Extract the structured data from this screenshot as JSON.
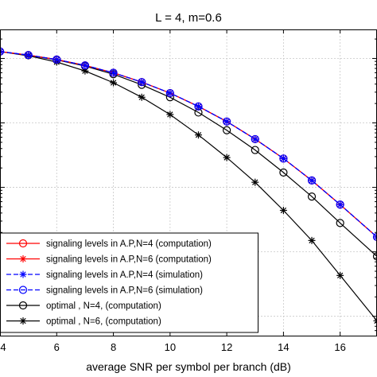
{
  "chart_data": {
    "type": "line",
    "title": "L = 4,  m=0.6",
    "xlabel": "average SNR per symbol per branch (dB)",
    "ylabel": "",
    "xlim": [
      4,
      17.3
    ],
    "ylim_log10": [
      -4.3,
      0.45
    ],
    "y_scale": "log",
    "x_ticks": [
      4,
      6,
      8,
      10,
      12,
      14,
      16
    ],
    "grid": true,
    "legend_position": "bottom-left",
    "series": [
      {
        "name": "signaling levels in A.P,N=4 (computation)",
        "color": "#ff0000",
        "marker": "circle",
        "dash": "solid",
        "x": [
          4,
          5,
          6,
          7,
          8,
          9,
          10,
          11,
          12,
          13,
          14,
          15,
          16,
          17.3
        ],
        "y": [
          1.28,
          1.13,
          0.96,
          0.78,
          0.6,
          0.43,
          0.29,
          0.18,
          0.105,
          0.056,
          0.028,
          0.0128,
          0.0054,
          0.0017
        ]
      },
      {
        "name": "signaling levels in A.P,N=6 (computation)",
        "color": "#ff0000",
        "marker": "star",
        "dash": "solid",
        "x": [
          4,
          5,
          6,
          7,
          8,
          9,
          10,
          11,
          12,
          13,
          14,
          15,
          16,
          17.3
        ],
        "y": [
          1.28,
          1.13,
          0.96,
          0.78,
          0.6,
          0.43,
          0.29,
          0.18,
          0.105,
          0.056,
          0.028,
          0.0128,
          0.0054,
          0.0017
        ]
      },
      {
        "name": "signaling levels in A.P,N=4 (simulation)",
        "color": "#0000ff",
        "marker": "star",
        "dash": "dashed",
        "x": [
          4,
          5,
          6,
          7,
          8,
          9,
          10,
          11,
          12,
          13,
          14,
          15,
          16,
          17.3
        ],
        "y": [
          1.28,
          1.13,
          0.96,
          0.78,
          0.6,
          0.43,
          0.29,
          0.18,
          0.105,
          0.056,
          0.028,
          0.0128,
          0.0054,
          0.0017
        ]
      },
      {
        "name": "signaling levels in A.P,N=6 (simulation)",
        "color": "#0000ff",
        "marker": "circle",
        "dash": "dashed",
        "x": [
          4,
          5,
          6,
          7,
          8,
          9,
          10,
          11,
          12,
          13,
          14,
          15,
          16,
          17.3
        ],
        "y": [
          1.28,
          1.13,
          0.96,
          0.78,
          0.6,
          0.43,
          0.29,
          0.18,
          0.105,
          0.056,
          0.028,
          0.0128,
          0.0054,
          0.0017
        ]
      },
      {
        "name": "optimal , N=4, (computation)",
        "color": "#000000",
        "marker": "circle",
        "dash": "solid",
        "x": [
          4,
          5,
          6,
          7,
          8,
          9,
          10,
          11,
          12,
          13,
          14,
          15,
          16,
          17.3
        ],
        "y": [
          1.28,
          1.12,
          0.95,
          0.76,
          0.57,
          0.39,
          0.25,
          0.145,
          0.077,
          0.038,
          0.017,
          0.0072,
          0.0028,
          0.00085
        ]
      },
      {
        "name": "optimal , N=6, (computation)",
        "color": "#000000",
        "marker": "star",
        "dash": "solid",
        "x": [
          4,
          5,
          6,
          7,
          8,
          9,
          10,
          11,
          12,
          13,
          14,
          15,
          16,
          17.3
        ],
        "y": [
          1.28,
          1.1,
          0.88,
          0.64,
          0.42,
          0.25,
          0.135,
          0.065,
          0.029,
          0.012,
          0.0044,
          0.0015,
          0.00043,
          8.5e-05
        ]
      }
    ]
  }
}
